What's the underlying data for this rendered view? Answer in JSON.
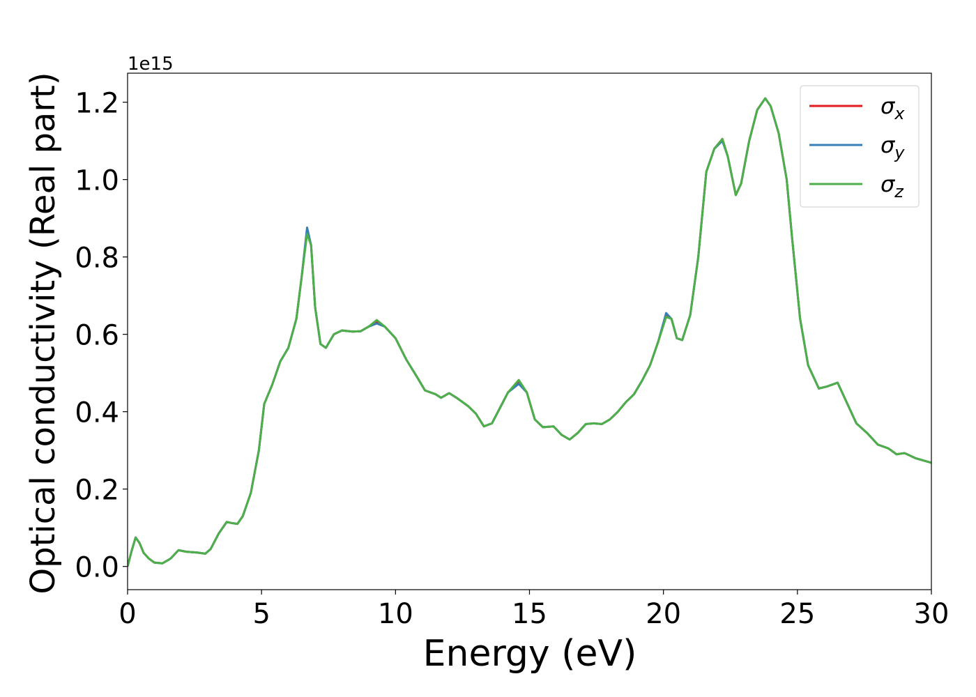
{
  "chart_data": {
    "type": "line",
    "ylabel": "Optical conductivity (Real part)",
    "xlabel": "Energy (eV)",
    "y_offset_text": "1e15",
    "x": [
      0,
      0.15,
      0.3,
      0.45,
      0.6,
      0.8,
      1.0,
      1.3,
      1.6,
      1.9,
      2.2,
      2.6,
      2.9,
      3.1,
      3.4,
      3.7,
      3.9,
      4.1,
      4.3,
      4.6,
      4.9,
      5.1,
      5.4,
      5.7,
      6.0,
      6.3,
      6.5,
      6.7,
      6.85,
      7.0,
      7.2,
      7.4,
      7.7,
      8.0,
      8.4,
      8.7,
      9.0,
      9.3,
      9.6,
      10.0,
      10.4,
      10.8,
      11.1,
      11.5,
      11.7,
      12.0,
      12.3,
      12.7,
      13.0,
      13.3,
      13.6,
      13.9,
      14.2,
      14.6,
      14.9,
      15.2,
      15.5,
      15.9,
      16.2,
      16.5,
      16.8,
      17.1,
      17.4,
      17.7,
      18.0,
      18.3,
      18.6,
      18.9,
      19.2,
      19.5,
      19.8,
      20.1,
      20.3,
      20.5,
      20.7,
      21.0,
      21.3,
      21.6,
      21.9,
      22.2,
      22.4,
      22.7,
      22.9,
      23.2,
      23.5,
      23.8,
      24.0,
      24.3,
      24.6,
      24.8,
      25.1,
      25.4,
      25.8,
      26.1,
      26.5,
      26.8,
      27.2,
      27.6,
      28.0,
      28.4,
      28.7,
      29.0,
      29.4,
      30
    ],
    "series": [
      {
        "name": "σx",
        "color": "#e41a1c",
        "values": [
          0,
          0.04,
          0.075,
          0.06,
          0.035,
          0.02,
          0.01,
          0.008,
          0.02,
          0.042,
          0.038,
          0.036,
          0.033,
          0.045,
          0.085,
          0.115,
          0.112,
          0.11,
          0.13,
          0.19,
          0.3,
          0.42,
          0.47,
          0.53,
          0.565,
          0.64,
          0.75,
          0.87,
          0.83,
          0.67,
          0.575,
          0.565,
          0.6,
          0.61,
          0.607,
          0.608,
          0.62,
          0.633,
          0.62,
          0.59,
          0.535,
          0.49,
          0.455,
          0.445,
          0.436,
          0.448,
          0.435,
          0.415,
          0.395,
          0.362,
          0.37,
          0.41,
          0.45,
          0.478,
          0.45,
          0.38,
          0.36,
          0.362,
          0.34,
          0.328,
          0.345,
          0.368,
          0.37,
          0.368,
          0.38,
          0.4,
          0.425,
          0.445,
          0.48,
          0.52,
          0.58,
          0.65,
          0.64,
          0.59,
          0.585,
          0.65,
          0.8,
          1.02,
          1.08,
          1.105,
          1.06,
          0.96,
          0.99,
          1.1,
          1.18,
          1.21,
          1.19,
          1.12,
          1.0,
          0.85,
          0.64,
          0.52,
          0.46,
          0.465,
          0.475,
          0.43,
          0.37,
          0.345,
          0.315,
          0.305,
          0.29,
          0.293,
          0.28,
          0.268
        ]
      },
      {
        "name": "σy",
        "color": "#377eb8",
        "values": [
          0,
          0.04,
          0.075,
          0.06,
          0.035,
          0.02,
          0.01,
          0.008,
          0.02,
          0.042,
          0.038,
          0.036,
          0.033,
          0.045,
          0.085,
          0.115,
          0.112,
          0.11,
          0.13,
          0.19,
          0.3,
          0.42,
          0.47,
          0.53,
          0.565,
          0.64,
          0.75,
          0.876,
          0.83,
          0.67,
          0.575,
          0.565,
          0.6,
          0.61,
          0.607,
          0.608,
          0.62,
          0.628,
          0.62,
          0.59,
          0.535,
          0.49,
          0.455,
          0.445,
          0.436,
          0.448,
          0.435,
          0.415,
          0.395,
          0.362,
          0.37,
          0.41,
          0.45,
          0.472,
          0.45,
          0.38,
          0.36,
          0.362,
          0.34,
          0.328,
          0.345,
          0.368,
          0.37,
          0.368,
          0.38,
          0.4,
          0.425,
          0.445,
          0.48,
          0.52,
          0.58,
          0.655,
          0.64,
          0.59,
          0.585,
          0.65,
          0.8,
          1.02,
          1.08,
          1.1,
          1.06,
          0.96,
          0.99,
          1.1,
          1.18,
          1.21,
          1.19,
          1.12,
          1.0,
          0.85,
          0.64,
          0.52,
          0.46,
          0.465,
          0.475,
          0.43,
          0.37,
          0.345,
          0.315,
          0.305,
          0.29,
          0.293,
          0.28,
          0.268
        ]
      },
      {
        "name": "σz",
        "color": "#4daf4a",
        "values": [
          0,
          0.04,
          0.075,
          0.06,
          0.035,
          0.02,
          0.01,
          0.008,
          0.02,
          0.042,
          0.038,
          0.036,
          0.033,
          0.045,
          0.085,
          0.115,
          0.112,
          0.11,
          0.13,
          0.19,
          0.3,
          0.42,
          0.47,
          0.53,
          0.565,
          0.64,
          0.75,
          0.86,
          0.83,
          0.67,
          0.575,
          0.565,
          0.6,
          0.61,
          0.607,
          0.608,
          0.62,
          0.637,
          0.62,
          0.59,
          0.535,
          0.49,
          0.455,
          0.445,
          0.436,
          0.448,
          0.435,
          0.415,
          0.395,
          0.362,
          0.37,
          0.41,
          0.45,
          0.482,
          0.45,
          0.38,
          0.36,
          0.362,
          0.34,
          0.328,
          0.345,
          0.368,
          0.37,
          0.368,
          0.38,
          0.4,
          0.425,
          0.445,
          0.48,
          0.52,
          0.58,
          0.645,
          0.64,
          0.59,
          0.585,
          0.65,
          0.8,
          1.02,
          1.08,
          1.105,
          1.06,
          0.96,
          0.99,
          1.1,
          1.18,
          1.21,
          1.19,
          1.12,
          1.0,
          0.85,
          0.64,
          0.52,
          0.46,
          0.465,
          0.475,
          0.43,
          0.37,
          0.345,
          0.315,
          0.305,
          0.29,
          0.293,
          0.28,
          0.268
        ]
      }
    ],
    "xlim": [
      0,
      30
    ],
    "xticks": [
      0,
      5,
      10,
      15,
      20,
      25,
      30
    ],
    "ylim": [
      -0.06,
      1.275
    ],
    "yticks": [
      {
        "value": 0,
        "label": "0.0"
      },
      0.2,
      0.4,
      0.6,
      0.8,
      {
        "value": 1,
        "label": "1.0"
      },
      1.2
    ],
    "grid": false,
    "legend": "upper right"
  }
}
